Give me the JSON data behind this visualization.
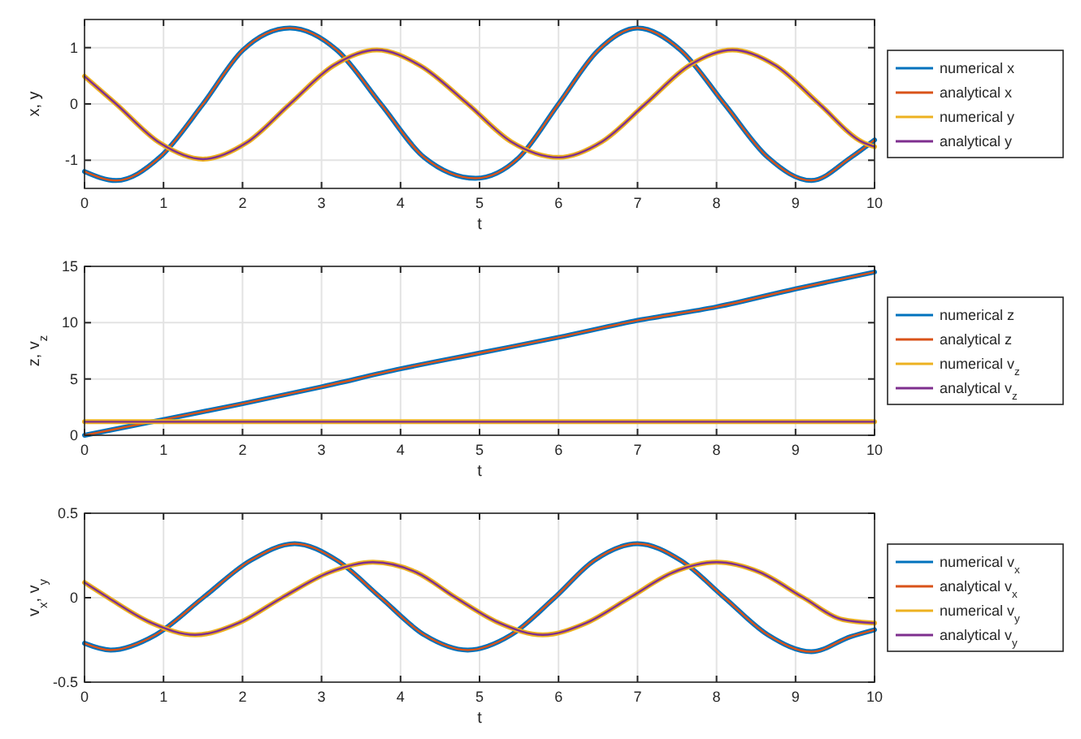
{
  "chart_data": [
    {
      "type": "line",
      "xlabel": "t",
      "ylabel": "x, y",
      "xlim": [
        0,
        10
      ],
      "xticks": [
        0,
        1,
        2,
        3,
        4,
        5,
        6,
        7,
        8,
        9,
        10
      ],
      "ylim": [
        -1.5,
        1.5
      ],
      "yticks": [
        -1,
        0,
        1
      ],
      "grid": true,
      "legend": "right",
      "line_style": "solid",
      "series": [
        {
          "name": "numerical x",
          "color": "#0072bd",
          "x": [
            0,
            0.4,
            0.95,
            1.5,
            2.0,
            2.6,
            3.2,
            3.75,
            4.3,
            4.95,
            5.5,
            6.0,
            6.5,
            7.0,
            7.55,
            8.1,
            8.65,
            9.2,
            9.7,
            10
          ],
          "values": [
            -1.2,
            -1.36,
            -0.95,
            0,
            0.95,
            1.35,
            0.95,
            0,
            -0.95,
            -1.32,
            -0.95,
            0,
            0.95,
            1.35,
            0.95,
            0,
            -0.95,
            -1.36,
            -0.95,
            -0.64
          ]
        },
        {
          "name": "analytical x",
          "color": "#d95319",
          "x": [
            0,
            0.4,
            0.95,
            1.5,
            2.0,
            2.6,
            3.2,
            3.75,
            4.3,
            4.95,
            5.5,
            6.0,
            6.5,
            7.0,
            7.55,
            8.1,
            8.65,
            9.2,
            9.7,
            10
          ],
          "values": [
            -1.2,
            -1.36,
            -0.95,
            0,
            0.95,
            1.35,
            0.95,
            0,
            -0.95,
            -1.32,
            -0.95,
            0,
            0.95,
            1.35,
            0.95,
            0,
            -0.95,
            -1.36,
            -0.95,
            -0.64
          ]
        },
        {
          "name": "numerical y",
          "color": "#edb120",
          "x": [
            0,
            0.4,
            0.95,
            1.5,
            2.05,
            2.6,
            3.15,
            3.7,
            4.25,
            4.85,
            5.4,
            6.0,
            6.55,
            7.1,
            7.65,
            8.2,
            8.75,
            9.3,
            9.85,
            10
          ],
          "values": [
            0.49,
            0,
            -0.69,
            -0.98,
            -0.69,
            0,
            0.68,
            0.96,
            0.68,
            0,
            -0.67,
            -0.95,
            -0.67,
            0,
            0.68,
            0.96,
            0.68,
            0,
            -0.68,
            -0.76
          ]
        },
        {
          "name": "analytical y",
          "color": "#7e2f8e",
          "x": [
            0,
            0.4,
            0.95,
            1.5,
            2.05,
            2.6,
            3.15,
            3.7,
            4.25,
            4.85,
            5.4,
            6.0,
            6.55,
            7.1,
            7.65,
            8.2,
            8.75,
            9.3,
            9.85,
            10
          ],
          "values": [
            0.49,
            0,
            -0.69,
            -0.98,
            -0.69,
            0,
            0.68,
            0.96,
            0.68,
            0,
            -0.67,
            -0.95,
            -0.67,
            0,
            0.68,
            0.96,
            0.68,
            0,
            -0.68,
            -0.76
          ]
        }
      ]
    },
    {
      "type": "line",
      "xlabel": "t",
      "ylabel": "z, v$_{z}$",
      "xlim": [
        0,
        10
      ],
      "xticks": [
        0,
        1,
        2,
        3,
        4,
        5,
        6,
        7,
        8,
        9,
        10
      ],
      "ylim": [
        0,
        15
      ],
      "yticks": [
        0,
        5,
        10,
        15
      ],
      "grid": true,
      "legend": "right",
      "line_style": "solid",
      "series": [
        {
          "name": "numerical z",
          "color": "#0072bd",
          "x": [
            0,
            1,
            2,
            3,
            4,
            5,
            6,
            7,
            8,
            9,
            10
          ],
          "values": [
            0,
            1.4,
            2.8,
            4.3,
            5.9,
            7.3,
            8.7,
            10.2,
            11.4,
            13,
            14.5
          ]
        },
        {
          "name": "analytical z",
          "color": "#d95319",
          "x": [
            0,
            1,
            2,
            3,
            4,
            5,
            6,
            7,
            8,
            9,
            10
          ],
          "values": [
            0,
            1.4,
            2.8,
            4.3,
            5.9,
            7.3,
            8.7,
            10.2,
            11.4,
            13,
            14.5
          ]
        },
        {
          "name": "numerical v$_{z}$",
          "color": "#edb120",
          "x": [
            0,
            10
          ],
          "values": [
            1.2,
            1.2
          ]
        },
        {
          "name": "analytical v$_{z}$",
          "color": "#7e2f8e",
          "x": [
            0,
            10
          ],
          "values": [
            1.2,
            1.2
          ]
        }
      ]
    },
    {
      "type": "line",
      "xlabel": "t",
      "ylabel": "v$_{x}$, v$_{y}$",
      "xlim": [
        0,
        10
      ],
      "xticks": [
        0,
        1,
        2,
        3,
        4,
        5,
        6,
        7,
        8,
        9,
        10
      ],
      "ylim": [
        -0.5,
        0.5
      ],
      "yticks": [
        -0.5,
        0,
        0.5
      ],
      "grid": true,
      "legend": "right",
      "line_style": "solid",
      "series": [
        {
          "name": "numerical v$_{x}$",
          "color": "#0072bd",
          "x": [
            0,
            0.33,
            0.9,
            1.5,
            2.1,
            2.66,
            3.2,
            3.75,
            4.3,
            4.85,
            5.4,
            5.95,
            6.45,
            7.0,
            7.55,
            8.1,
            8.65,
            9.2,
            9.7,
            10
          ],
          "values": [
            -0.27,
            -0.31,
            -0.22,
            0,
            0.22,
            0.32,
            0.22,
            0,
            -0.22,
            -0.31,
            -0.22,
            0,
            0.22,
            0.32,
            0.22,
            0,
            -0.22,
            -0.32,
            -0.23,
            -0.19
          ]
        },
        {
          "name": "analytical v$_{x}$",
          "color": "#d95319",
          "x": [
            0,
            0.33,
            0.9,
            1.5,
            2.1,
            2.66,
            3.2,
            3.75,
            4.3,
            4.85,
            5.4,
            5.95,
            6.45,
            7.0,
            7.55,
            8.1,
            8.65,
            9.2,
            9.7,
            10
          ],
          "values": [
            -0.27,
            -0.31,
            -0.22,
            0,
            0.22,
            0.32,
            0.22,
            0,
            -0.22,
            -0.31,
            -0.22,
            0,
            0.22,
            0.32,
            0.22,
            0,
            -0.22,
            -0.32,
            -0.23,
            -0.19
          ]
        },
        {
          "name": "numerical v$_{y}$",
          "color": "#edb120",
          "x": [
            0,
            0.3,
            0.85,
            1.4,
            1.95,
            2.5,
            3.1,
            3.65,
            4.2,
            4.7,
            5.25,
            5.8,
            6.35,
            6.9,
            7.45,
            8.0,
            8.55,
            9.1,
            9.6,
            10
          ],
          "values": [
            0.09,
            0,
            -0.15,
            -0.22,
            -0.15,
            0,
            0.15,
            0.21,
            0.15,
            0,
            -0.15,
            -0.22,
            -0.15,
            0,
            0.15,
            0.21,
            0.15,
            0,
            -0.13,
            -0.15
          ]
        },
        {
          "name": "analytical v$_{y}$",
          "color": "#7e2f8e",
          "x": [
            0,
            0.3,
            0.85,
            1.4,
            1.95,
            2.5,
            3.1,
            3.65,
            4.2,
            4.7,
            5.25,
            5.8,
            6.35,
            6.9,
            7.45,
            8.0,
            8.55,
            9.1,
            9.6,
            10
          ],
          "values": [
            0.09,
            0,
            -0.15,
            -0.22,
            -0.15,
            0,
            0.15,
            0.21,
            0.15,
            0,
            -0.15,
            -0.22,
            -0.15,
            0,
            0.15,
            0.21,
            0.15,
            0,
            -0.13,
            -0.15
          ]
        }
      ]
    }
  ]
}
